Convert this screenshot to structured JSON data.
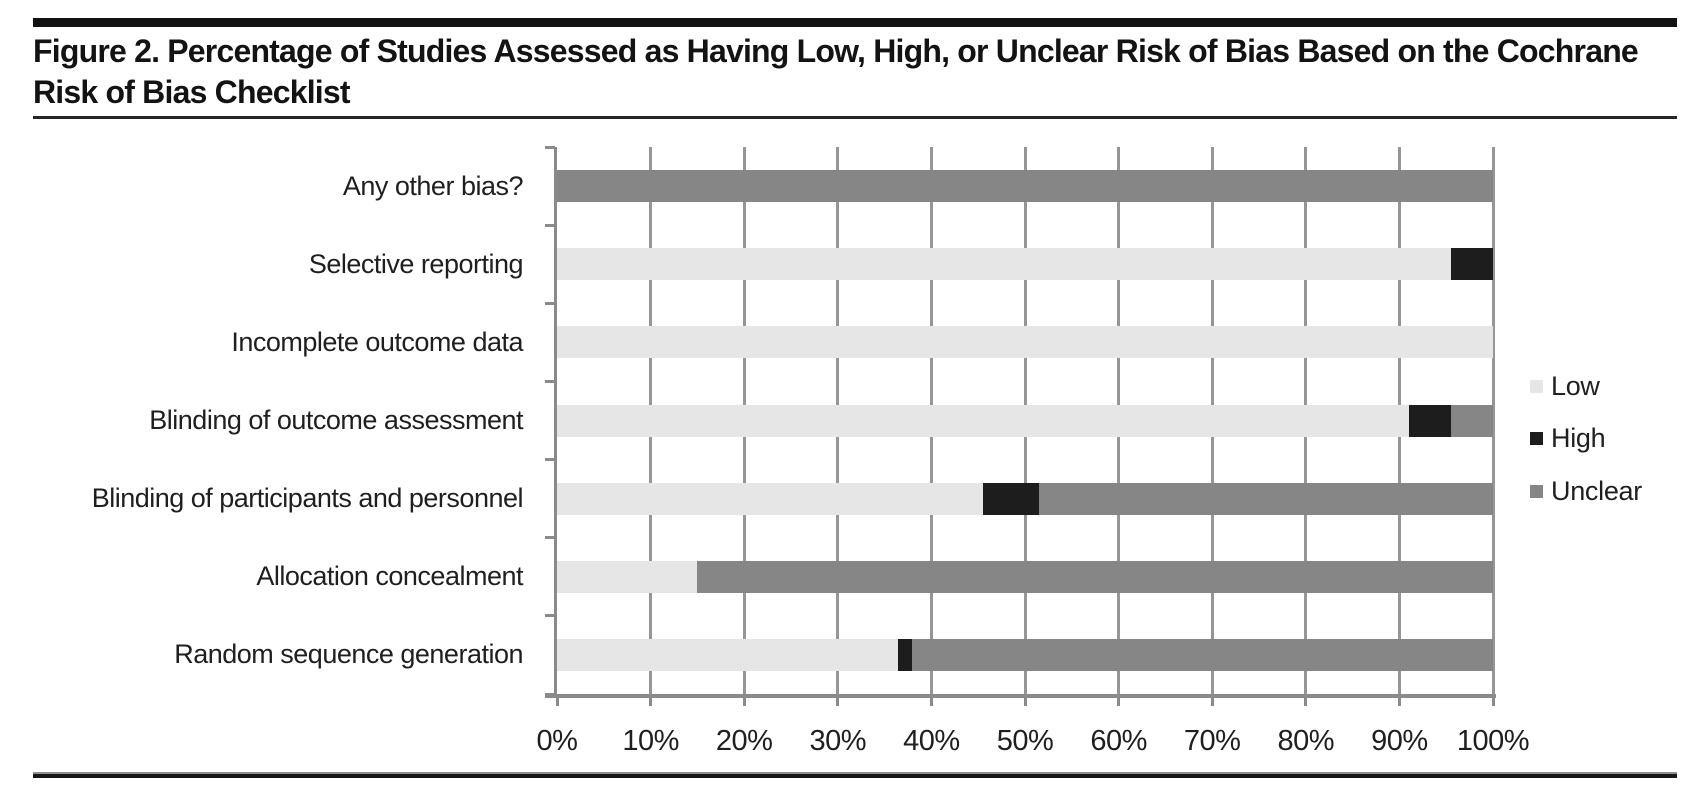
{
  "figure": {
    "title": "Figure 2. Percentage of Studies Assessed as Having Low, High, or Unclear Risk of Bias Based on the Cochrane Risk of Bias Checklist"
  },
  "chart_data": {
    "type": "bar",
    "orientation": "horizontal-stacked",
    "title": "Figure 2. Percentage of Studies Assessed as Having Low, High, or Unclear Risk of Bias Based on the Cochrane Risk of Bias Checklist",
    "categories": [
      "Any other bias?",
      "Selective reporting",
      "Incomplete outcome data",
      "Blinding of outcome assessment",
      "Blinding of participants and personnel",
      "Allocation concealment",
      "Random sequence generation"
    ],
    "series": [
      {
        "name": "Low",
        "color": "#e6e6e6",
        "values": [
          0,
          95.5,
          100,
          91,
          45.5,
          15,
          36.4
        ]
      },
      {
        "name": "High",
        "color": "#1d1d1d",
        "values": [
          0,
          4.5,
          0,
          4.5,
          6,
          0,
          1.5
        ]
      },
      {
        "name": "Unclear",
        "color": "#868686",
        "values": [
          100,
          0,
          0,
          4.5,
          48.5,
          85,
          62.1
        ]
      }
    ],
    "x_ticks": [
      "0%",
      "10%",
      "20%",
      "30%",
      "40%",
      "50%",
      "60%",
      "70%",
      "80%",
      "90%",
      "100%"
    ],
    "xlim": [
      0,
      100
    ],
    "xlabel": "",
    "ylabel": "",
    "grid": true,
    "legend_position": "right",
    "colors": {
      "grid": "#969696",
      "axis": "#8a8a8a",
      "text": "#1f1f1f"
    }
  }
}
